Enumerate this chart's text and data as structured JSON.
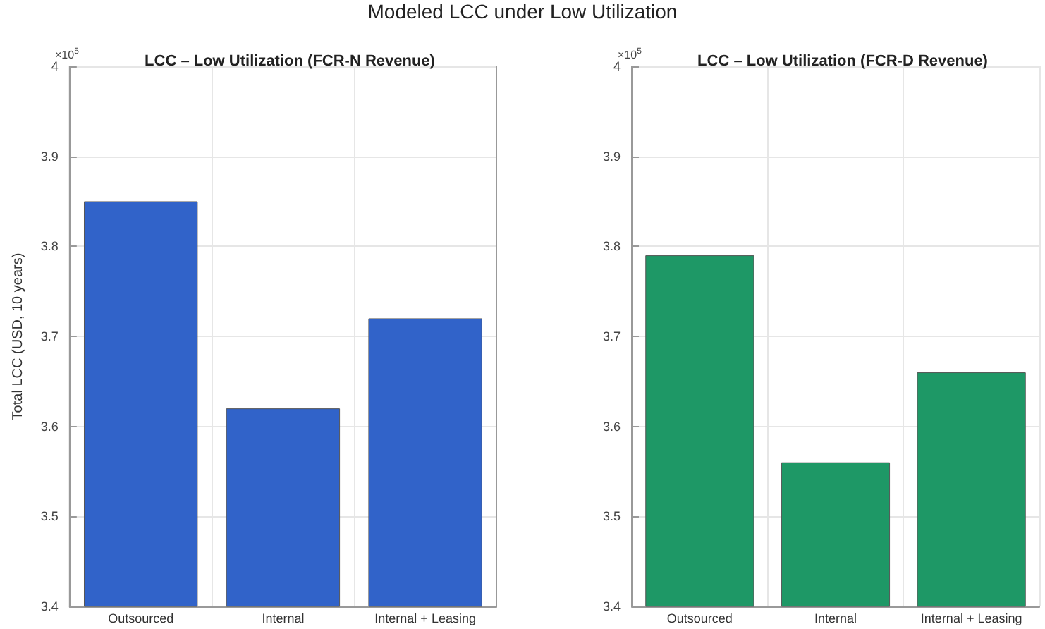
{
  "chart_data": [
    {
      "type": "bar",
      "title": "LCC – Low Utilization (FCR-N Revenue)",
      "ylabel": "Total LCC (USD, 10 years)",
      "annotations": [
        "Modeled LCC under Low Utilization",
        "×10$^{5}$"
      ],
      "categories": [
        "Outsourced",
        "Internal",
        "Internal + Leasing"
      ],
      "series": [
        {
          "color": "#3163c9",
          "values": [
            3.85,
            3.62,
            3.72
          ]
        }
      ],
      "ylim": [
        3.4,
        4
      ],
      "yticks": [
        3.4,
        3.5,
        3.6,
        3.7,
        3.8,
        3.9,
        4
      ],
      "grid": true
    },
    {
      "type": "bar",
      "title": "LCC – Low Utilization (FCR-D Revenue)",
      "annotations": [
        "×10$^{5}$"
      ],
      "categories": [
        "Outsourced",
        "Internal",
        "Internal + Leasing"
      ],
      "series": [
        {
          "color": "#1e9866",
          "values": [
            3.79,
            3.56,
            3.66
          ]
        }
      ],
      "ylim": [
        3.4,
        4
      ],
      "yticks": [
        3.4,
        3.5,
        3.6,
        3.7,
        3.8,
        3.9,
        4
      ],
      "grid": true
    }
  ]
}
